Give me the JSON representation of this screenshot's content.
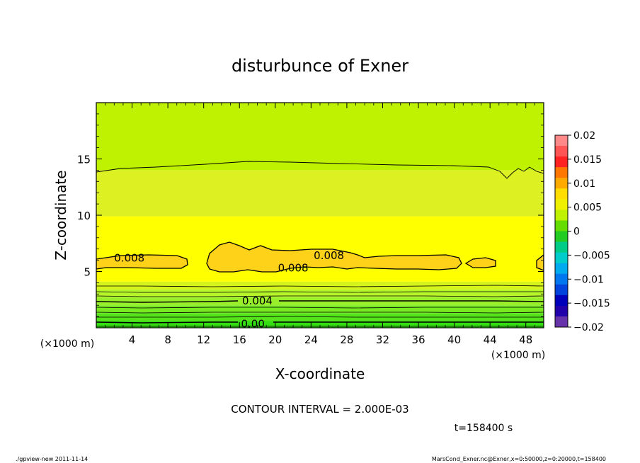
{
  "title": "disturbunce of Exner",
  "footer": {
    "left": "./gpview-new   2011-11-14",
    "right": "MarsCond_Exner.nc@Exner,x=0:50000,z=0:20000,t=158400"
  },
  "chart_data": {
    "type": "heatmap",
    "title": "disturbunce of Exner",
    "xlabel": "X-coordinate",
    "ylabel": "Z-coordinate",
    "x_unit_left": "(×1000 m)",
    "x_unit_right": "(×1000 m)",
    "xlim": [
      0,
      50
    ],
    "ylim": [
      0,
      20
    ],
    "x_ticks": [
      4,
      8,
      12,
      16,
      20,
      24,
      28,
      32,
      36,
      40,
      44,
      48
    ],
    "y_ticks": [
      5,
      10,
      15
    ],
    "contour_interval_text": "CONTOUR INTERVAL = 2.000E-03",
    "time_text": "t=158400 s",
    "contour_labels": [
      {
        "text": "0.008",
        "x": 3.7,
        "z": 6.2
      },
      {
        "text": "0.008",
        "x": 26.0,
        "z": 6.4
      },
      {
        "text": "0.008",
        "x": 22.0,
        "z": 5.3
      },
      {
        "text": "0.004",
        "x": 18.0,
        "z": 2.4
      },
      {
        "text": "0.00",
        "x": 17.5,
        "z": 0.35
      }
    ],
    "bands": [
      {
        "z0": 0.0,
        "z1": 0.6,
        "value_range": "0 to 0.001",
        "color": "#33dd11"
      },
      {
        "z0": 0.6,
        "z1": 1.3,
        "value_range": "0.001 to 0.002",
        "color": "#55e31a"
      },
      {
        "z0": 1.3,
        "z1": 2.0,
        "value_range": "0.002 to 0.003",
        "color": "#77ea22"
      },
      {
        "z0": 2.0,
        "z1": 2.7,
        "value_range": "0.003 to 0.004",
        "color": "#99f02a"
      },
      {
        "z0": 2.7,
        "z1": 3.4,
        "value_range": "0.004 to 0.005",
        "color": "#b6f52a"
      },
      {
        "z0": 3.4,
        "z1": 4.1,
        "value_range": "0.005 to 0.006",
        "color": "#d4f41c"
      },
      {
        "z0": 4.1,
        "z1": 9.9,
        "value_range": "0.006 to 0.008",
        "color": "#ffff00"
      },
      {
        "z0": 9.9,
        "z1": 14.0,
        "value_range": "0.005 to 0.006",
        "color": "#ddf022"
      },
      {
        "z0": 14.0,
        "z1": 20.0,
        "value_range": "0.004 to 0.005",
        "color": "#bff200"
      }
    ],
    "colorbar": {
      "ticks": [
        "0.02",
        "0.015",
        "0.01",
        "0.005",
        "0",
        "−0.005",
        "−0.01",
        "−0.015",
        "−0.02"
      ],
      "colors": [
        "#ff8888",
        "#ff5555",
        "#ff2222",
        "#ff7700",
        "#ffaa00",
        "#ffdd00",
        "#eef000",
        "#bff200",
        "#66dd00",
        "#22cc22",
        "#00cc88",
        "#00cccc",
        "#00aaee",
        "#0077ee",
        "#0044dd",
        "#0000bb",
        "#2200aa",
        "#6633aa"
      ]
    }
  }
}
